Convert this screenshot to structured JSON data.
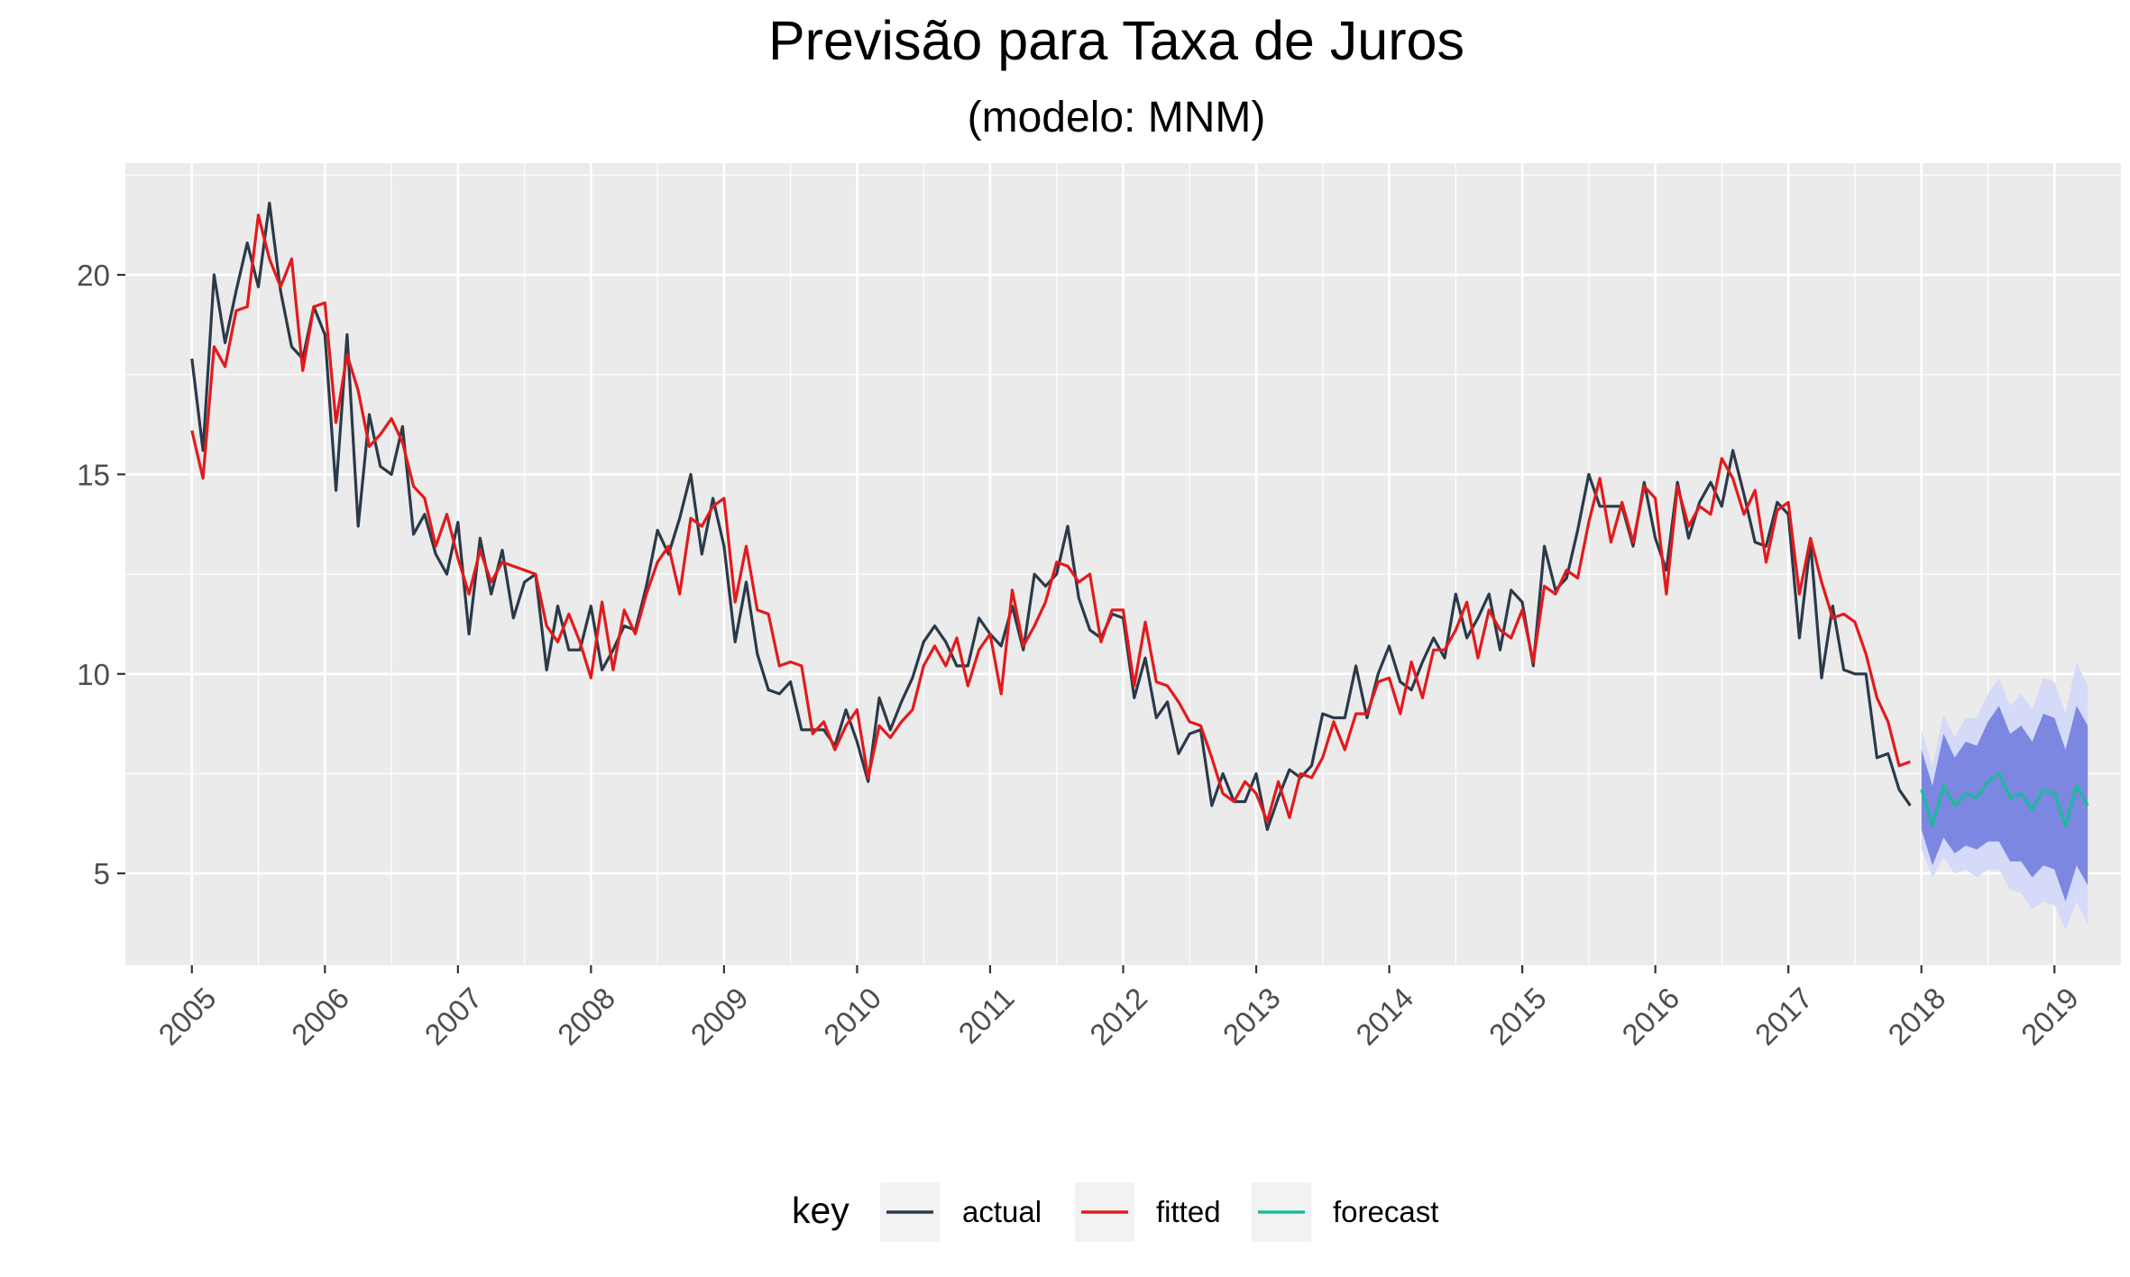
{
  "chart_data": {
    "type": "line",
    "title": "Previsão para Taxa de Juros",
    "subtitle": "(modelo: MNM)",
    "xlabel": "",
    "ylabel": "",
    "xlim": [
      2004.5,
      2019.5
    ],
    "ylim": [
      2.7,
      22.8
    ],
    "x_ticks": [
      "2005",
      "2006",
      "2007",
      "2008",
      "2009",
      "2010",
      "2011",
      "2012",
      "2013",
      "2014",
      "2015",
      "2016",
      "2017",
      "2018",
      "2019"
    ],
    "y_ticks": [
      5,
      10,
      15,
      20
    ],
    "grid": true,
    "legend": {
      "title": "key",
      "placement": "bottom",
      "entries": [
        "actual",
        "fitted",
        "forecast"
      ]
    },
    "colors": {
      "actual": "#2b3a4a",
      "fitted": "#e31a1c",
      "forecast": "#18bc9c",
      "band80": "#7b87e0",
      "band95": "#d4daf7",
      "panel": "#ebebeb",
      "grid": "#ffffff"
    },
    "series": [
      {
        "name": "actual",
        "start": 2005.0,
        "step": 0.08333,
        "values": [
          17.9,
          15.6,
          20.0,
          18.3,
          19.6,
          20.8,
          19.7,
          21.8,
          19.6,
          18.2,
          17.9,
          19.2,
          18.5,
          14.6,
          18.5,
          13.7,
          16.5,
          15.2,
          15.0,
          16.2,
          13.5,
          14.0,
          13.0,
          12.5,
          13.8,
          11.0,
          13.4,
          12.0,
          13.1,
          11.4,
          12.3,
          12.5,
          10.1,
          11.7,
          10.6,
          10.6,
          11.7,
          10.1,
          10.6,
          11.2,
          11.1,
          12.2,
          13.6,
          13.0,
          13.9,
          15.0,
          13.0,
          14.4,
          13.2,
          10.8,
          12.3,
          10.5,
          9.6,
          9.5,
          9.8,
          8.6,
          8.6,
          8.6,
          8.2,
          9.1,
          8.3,
          7.3,
          9.4,
          8.6,
          9.3,
          9.9,
          10.8,
          11.2,
          10.8,
          10.2,
          10.2,
          11.4,
          11.0,
          10.7,
          11.7,
          10.6,
          12.5,
          12.2,
          12.5,
          13.7,
          11.9,
          11.1,
          10.9,
          11.5,
          11.4,
          9.4,
          10.4,
          8.9,
          9.3,
          8.0,
          8.5,
          8.6,
          6.7,
          7.5,
          6.8,
          6.8,
          7.5,
          6.1,
          6.9,
          7.6,
          7.4,
          7.7,
          9.0,
          8.9,
          8.9,
          10.2,
          8.9,
          10.0,
          10.7,
          9.8,
          9.6,
          10.3,
          10.9,
          10.4,
          12.0,
          10.9,
          11.4,
          12.0,
          10.6,
          12.1,
          11.8,
          10.2,
          13.2,
          12.1,
          12.4,
          13.6,
          15.0,
          14.2,
          14.2,
          14.2,
          13.2,
          14.8,
          13.4,
          12.6,
          14.8,
          13.4,
          14.3,
          14.8,
          14.2,
          15.6,
          14.5,
          13.3,
          13.2,
          14.3,
          14.0,
          10.9,
          13.3,
          9.9,
          11.7,
          10.1,
          10.0,
          10.0,
          7.9,
          8.0,
          7.1,
          6.7
        ]
      },
      {
        "name": "fitted",
        "start": 2005.0,
        "step": 0.08333,
        "values": [
          16.1,
          14.9,
          18.2,
          17.7,
          19.1,
          19.2,
          21.5,
          20.4,
          19.7,
          20.4,
          17.6,
          19.2,
          19.3,
          16.3,
          18.0,
          17.1,
          15.7,
          16.0,
          16.4,
          15.8,
          14.7,
          14.4,
          13.2,
          14.0,
          12.9,
          12.0,
          13.1,
          12.3,
          12.8,
          12.7,
          12.6,
          12.5,
          11.2,
          10.8,
          11.5,
          10.8,
          9.9,
          11.8,
          10.1,
          11.6,
          11.0,
          12.0,
          12.8,
          13.2,
          12.0,
          13.9,
          13.7,
          14.2,
          14.4,
          11.8,
          13.2,
          11.6,
          11.5,
          10.2,
          10.3,
          10.2,
          8.5,
          8.8,
          8.1,
          8.7,
          9.1,
          7.4,
          8.7,
          8.4,
          8.8,
          9.1,
          10.2,
          10.7,
          10.2,
          10.9,
          9.7,
          10.6,
          11.0,
          9.5,
          12.1,
          10.7,
          11.2,
          11.8,
          12.8,
          12.7,
          12.3,
          12.5,
          10.8,
          11.6,
          11.6,
          9.7,
          11.3,
          9.8,
          9.7,
          9.3,
          8.8,
          8.7,
          7.9,
          7.0,
          6.8,
          7.3,
          7.0,
          6.3,
          7.3,
          6.4,
          7.5,
          7.4,
          7.9,
          8.8,
          8.1,
          9.0,
          9.0,
          9.8,
          9.9,
          9.0,
          10.3,
          9.4,
          10.6,
          10.6,
          11.1,
          11.8,
          10.4,
          11.6,
          11.1,
          10.9,
          11.6,
          10.3,
          12.2,
          12.0,
          12.6,
          12.4,
          13.8,
          14.9,
          13.3,
          14.3,
          13.3,
          14.7,
          14.4,
          12.0,
          14.7,
          13.7,
          14.2,
          14.0,
          15.4,
          14.9,
          14.0,
          14.6,
          12.8,
          14.1,
          14.3,
          12.0,
          13.4,
          12.3,
          11.4,
          11.5,
          11.3,
          10.5,
          9.4,
          8.8,
          7.7,
          7.8
        ]
      },
      {
        "name": "forecast",
        "start": 2018.0,
        "step": 0.08333,
        "values": [
          7.1,
          6.2,
          7.2,
          6.7,
          7.0,
          6.9,
          7.3,
          7.5,
          6.9,
          7.0,
          6.6,
          7.1,
          7.0,
          6.2,
          7.2,
          6.7
        ],
        "lo80": [
          6.1,
          5.2,
          5.9,
          5.5,
          5.7,
          5.6,
          5.8,
          5.8,
          5.3,
          5.3,
          4.9,
          5.2,
          5.1,
          4.3,
          5.2,
          4.7
        ],
        "hi80": [
          8.1,
          7.2,
          8.5,
          7.9,
          8.3,
          8.2,
          8.8,
          9.2,
          8.5,
          8.7,
          8.3,
          9.0,
          8.9,
          8.1,
          9.2,
          8.7
        ],
        "lo95": [
          5.6,
          4.9,
          5.4,
          5.0,
          5.1,
          4.9,
          5.1,
          5.1,
          4.6,
          4.5,
          4.1,
          4.3,
          4.2,
          3.6,
          4.3,
          3.7
        ],
        "hi95": [
          8.6,
          7.7,
          9.0,
          8.4,
          8.9,
          8.9,
          9.5,
          9.9,
          9.2,
          9.5,
          9.1,
          9.9,
          9.8,
          9.0,
          10.3,
          9.7
        ]
      }
    ]
  }
}
